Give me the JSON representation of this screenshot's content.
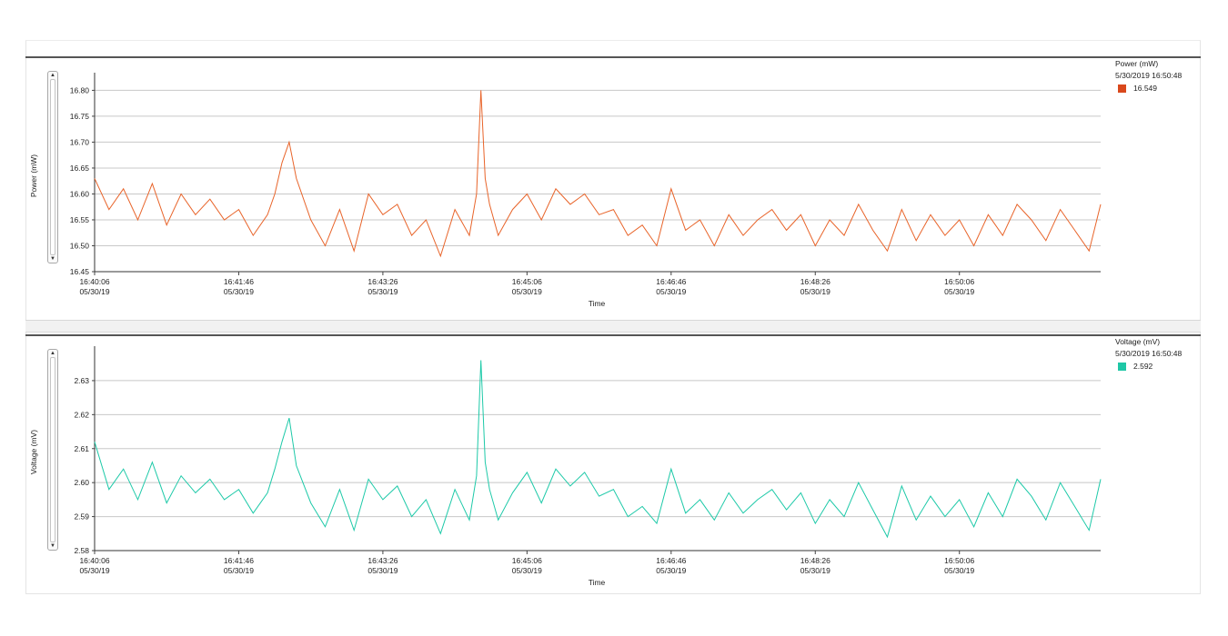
{
  "panels": [
    {
      "legend": {
        "title": "Power (mW)",
        "timestamp": "5/30/2019 16:50:48",
        "value": "16.549"
      }
    },
    {
      "legend": {
        "title": "Voltage (mV)",
        "timestamp": "5/30/2019 16:50:48",
        "value": "2.592"
      }
    }
  ],
  "chart_data": [
    {
      "type": "line",
      "ylabel": "Power (mW)",
      "xlabel": "Time",
      "ylim": [
        16.45,
        16.82
      ],
      "yticks": [
        "16.45",
        "16.50",
        "16.55",
        "16.60",
        "16.65",
        "16.70",
        "16.75",
        "16.80"
      ],
      "xticks": [
        {
          "time": "16:40:06",
          "date": "05/30/19"
        },
        {
          "time": "16:41:46",
          "date": "05/30/19"
        },
        {
          "time": "16:43:26",
          "date": "05/30/19"
        },
        {
          "time": "16:45:06",
          "date": "05/30/19"
        },
        {
          "time": "16:46:46",
          "date": "05/30/19"
        },
        {
          "time": "16:48:26",
          "date": "05/30/19"
        },
        {
          "time": "16:50:06",
          "date": "05/30/19"
        }
      ],
      "xlim": [
        "16:40:06",
        "16:51:44"
      ],
      "grid": true,
      "legend_position": "top-right",
      "series": [
        {
          "name": "Power (mW)",
          "color": "#e8642a",
          "x": [
            "16:40:06",
            "16:40:16",
            "16:40:26",
            "16:40:36",
            "16:40:46",
            "16:40:56",
            "16:41:06",
            "16:41:16",
            "16:41:26",
            "16:41:36",
            "16:41:46",
            "16:41:56",
            "16:42:06",
            "16:42:11",
            "16:42:16",
            "16:42:21",
            "16:42:26",
            "16:42:36",
            "16:42:46",
            "16:42:56",
            "16:43:06",
            "16:43:16",
            "16:43:26",
            "16:43:36",
            "16:43:46",
            "16:43:56",
            "16:44:06",
            "16:44:16",
            "16:44:26",
            "16:44:31",
            "16:44:34",
            "16:44:37",
            "16:44:40",
            "16:44:46",
            "16:44:56",
            "16:45:06",
            "16:45:16",
            "16:45:26",
            "16:45:36",
            "16:45:46",
            "16:45:56",
            "16:46:06",
            "16:46:16",
            "16:46:26",
            "16:46:36",
            "16:46:46",
            "16:46:56",
            "16:47:06",
            "16:47:16",
            "16:47:26",
            "16:47:36",
            "16:47:46",
            "16:47:56",
            "16:48:06",
            "16:48:16",
            "16:48:26",
            "16:48:36",
            "16:48:46",
            "16:48:56",
            "16:49:06",
            "16:49:16",
            "16:49:26",
            "16:49:36",
            "16:49:46",
            "16:49:56",
            "16:50:06",
            "16:50:16",
            "16:50:26",
            "16:50:36",
            "16:50:46",
            "16:50:56",
            "16:51:06",
            "16:51:16",
            "16:51:26",
            "16:51:36",
            "16:51:44"
          ],
          "y": [
            16.63,
            16.57,
            16.61,
            16.55,
            16.62,
            16.54,
            16.6,
            16.56,
            16.59,
            16.55,
            16.57,
            16.52,
            16.56,
            16.6,
            16.66,
            16.7,
            16.63,
            16.55,
            16.5,
            16.57,
            16.49,
            16.6,
            16.56,
            16.58,
            16.52,
            16.55,
            16.48,
            16.57,
            16.52,
            16.6,
            16.8,
            16.63,
            16.58,
            16.52,
            16.57,
            16.6,
            16.55,
            16.61,
            16.58,
            16.6,
            16.56,
            16.57,
            16.52,
            16.54,
            16.5,
            16.61,
            16.53,
            16.55,
            16.5,
            16.56,
            16.52,
            16.55,
            16.57,
            16.53,
            16.56,
            16.5,
            16.55,
            16.52,
            16.58,
            16.53,
            16.49,
            16.57,
            16.51,
            16.56,
            16.52,
            16.55,
            16.5,
            16.56,
            16.52,
            16.58,
            16.55,
            16.51,
            16.57,
            16.53,
            16.49,
            16.58
          ]
        }
      ]
    },
    {
      "type": "line",
      "ylabel": "Voltage (mV)",
      "xlabel": "Time",
      "ylim": [
        2.58,
        2.638
      ],
      "yticks": [
        "2.58",
        "2.59",
        "2.60",
        "2.61",
        "2.62",
        "2.63"
      ],
      "xticks": [
        {
          "time": "16:40:06",
          "date": "05/30/19"
        },
        {
          "time": "16:41:46",
          "date": "05/30/19"
        },
        {
          "time": "16:43:26",
          "date": "05/30/19"
        },
        {
          "time": "16:45:06",
          "date": "05/30/19"
        },
        {
          "time": "16:46:46",
          "date": "05/30/19"
        },
        {
          "time": "16:48:26",
          "date": "05/30/19"
        },
        {
          "time": "16:50:06",
          "date": "05/30/19"
        }
      ],
      "xlim": [
        "16:40:06",
        "16:51:44"
      ],
      "grid": true,
      "legend_position": "top-right",
      "series": [
        {
          "name": "Voltage (mV)",
          "color": "#1dc9a8",
          "x": [
            "16:40:06",
            "16:40:16",
            "16:40:26",
            "16:40:36",
            "16:40:46",
            "16:40:56",
            "16:41:06",
            "16:41:16",
            "16:41:26",
            "16:41:36",
            "16:41:46",
            "16:41:56",
            "16:42:06",
            "16:42:11",
            "16:42:16",
            "16:42:21",
            "16:42:26",
            "16:42:36",
            "16:42:46",
            "16:42:56",
            "16:43:06",
            "16:43:16",
            "16:43:26",
            "16:43:36",
            "16:43:46",
            "16:43:56",
            "16:44:06",
            "16:44:16",
            "16:44:26",
            "16:44:31",
            "16:44:34",
            "16:44:37",
            "16:44:40",
            "16:44:46",
            "16:44:56",
            "16:45:06",
            "16:45:16",
            "16:45:26",
            "16:45:36",
            "16:45:46",
            "16:45:56",
            "16:46:06",
            "16:46:16",
            "16:46:26",
            "16:46:36",
            "16:46:46",
            "16:46:56",
            "16:47:06",
            "16:47:16",
            "16:47:26",
            "16:47:36",
            "16:47:46",
            "16:47:56",
            "16:48:06",
            "16:48:16",
            "16:48:26",
            "16:48:36",
            "16:48:46",
            "16:48:56",
            "16:49:06",
            "16:49:16",
            "16:49:26",
            "16:49:36",
            "16:49:46",
            "16:49:56",
            "16:50:06",
            "16:50:16",
            "16:50:26",
            "16:50:36",
            "16:50:46",
            "16:50:56",
            "16:51:06",
            "16:51:16",
            "16:51:26",
            "16:51:36",
            "16:51:44"
          ],
          "y": [
            2.612,
            2.598,
            2.604,
            2.595,
            2.606,
            2.594,
            2.602,
            2.597,
            2.601,
            2.595,
            2.598,
            2.591,
            2.597,
            2.604,
            2.612,
            2.619,
            2.605,
            2.594,
            2.587,
            2.598,
            2.586,
            2.601,
            2.595,
            2.599,
            2.59,
            2.595,
            2.585,
            2.598,
            2.589,
            2.602,
            2.636,
            2.606,
            2.598,
            2.589,
            2.597,
            2.603,
            2.594,
            2.604,
            2.599,
            2.603,
            2.596,
            2.598,
            2.59,
            2.593,
            2.588,
            2.604,
            2.591,
            2.595,
            2.589,
            2.597,
            2.591,
            2.595,
            2.598,
            2.592,
            2.597,
            2.588,
            2.595,
            2.59,
            2.6,
            2.592,
            2.584,
            2.599,
            2.589,
            2.596,
            2.59,
            2.595,
            2.587,
            2.597,
            2.59,
            2.601,
            2.596,
            2.589,
            2.6,
            2.593,
            2.586,
            2.601
          ]
        }
      ]
    }
  ]
}
